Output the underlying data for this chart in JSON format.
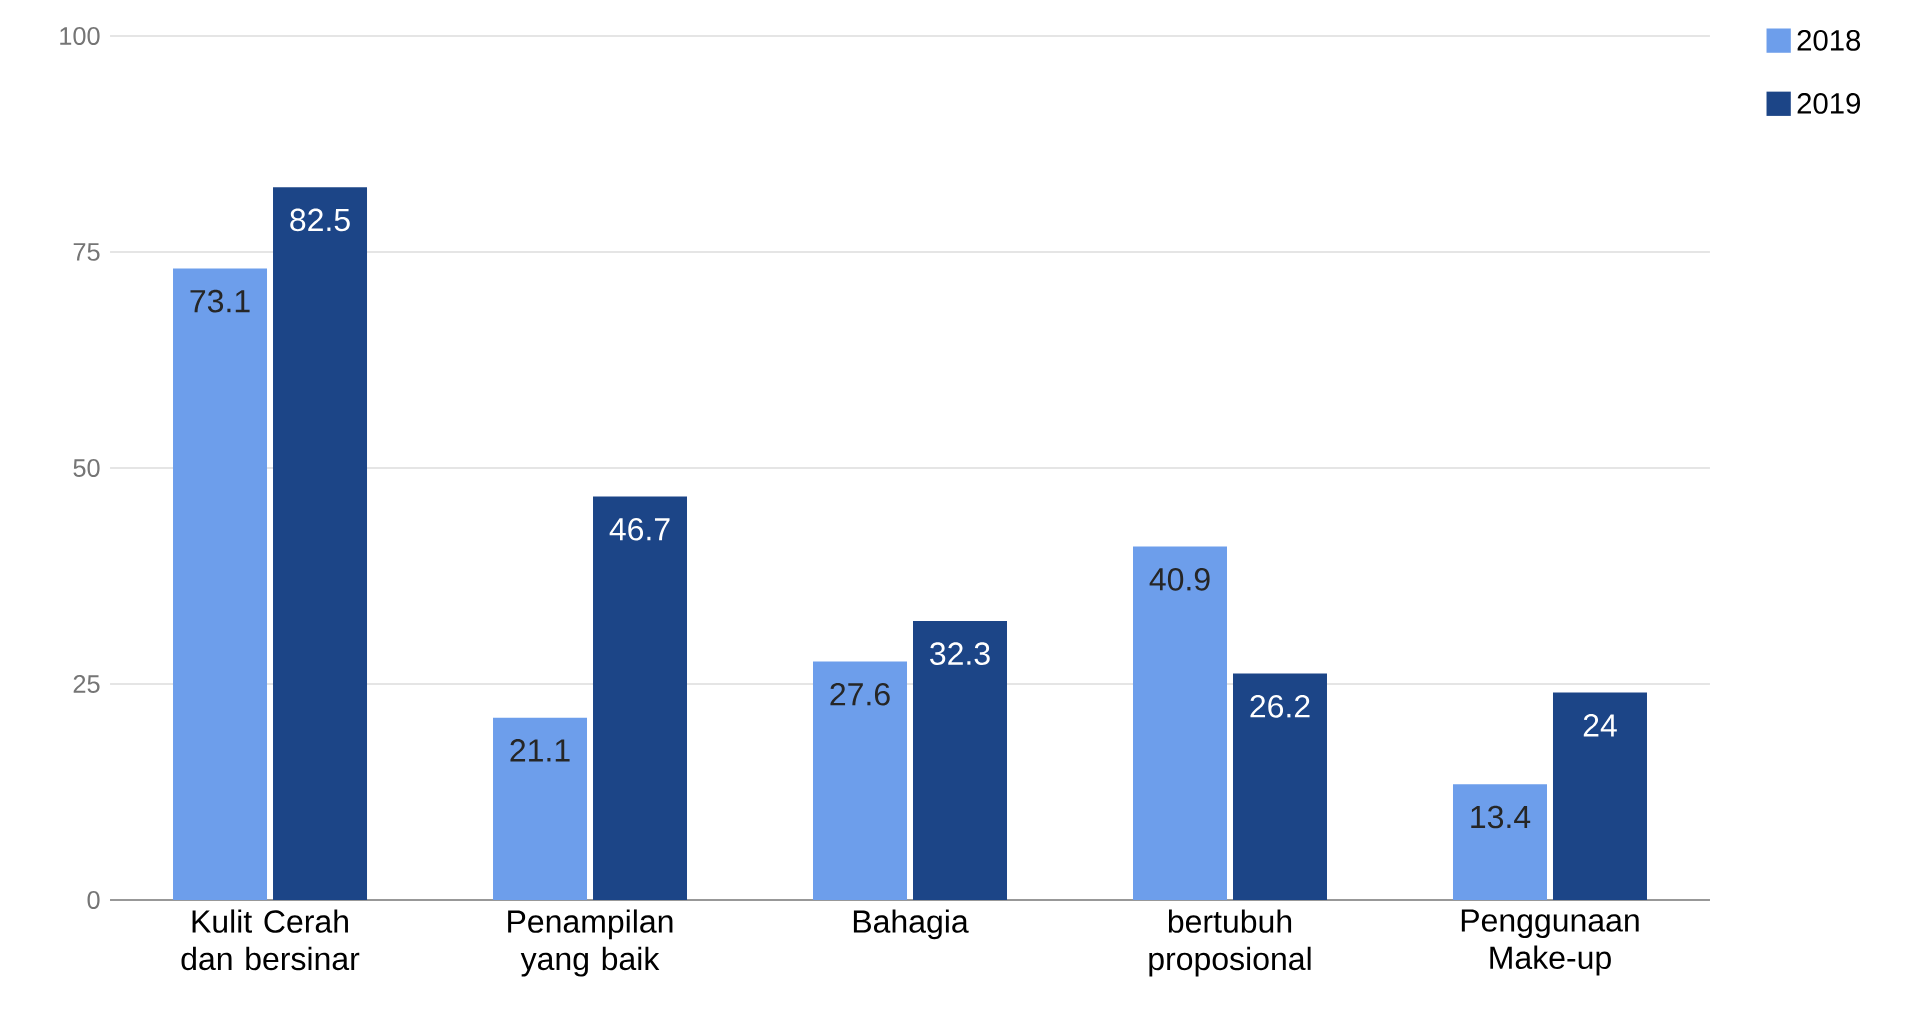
{
  "chart_data": {
    "type": "bar",
    "categories": [
      "Kulit Cerah dan bersinar",
      "Penampilan yang baik",
      "Bahagia",
      "bertubuh proposional",
      "Penggunaan Make-up"
    ],
    "series": [
      {
        "name": "2018",
        "color": "#6d9eeb",
        "values": [
          73.1,
          21.1,
          27.6,
          40.9,
          13.4
        ]
      },
      {
        "name": "2019",
        "color": "#1c4587",
        "values": [
          82.5,
          46.7,
          32.3,
          26.2,
          24
        ]
      }
    ],
    "ylim": [
      0,
      100
    ],
    "yticks": [
      0,
      25,
      50,
      75,
      100
    ],
    "grid": "y",
    "legend": "top right",
    "data_labels": true
  }
}
